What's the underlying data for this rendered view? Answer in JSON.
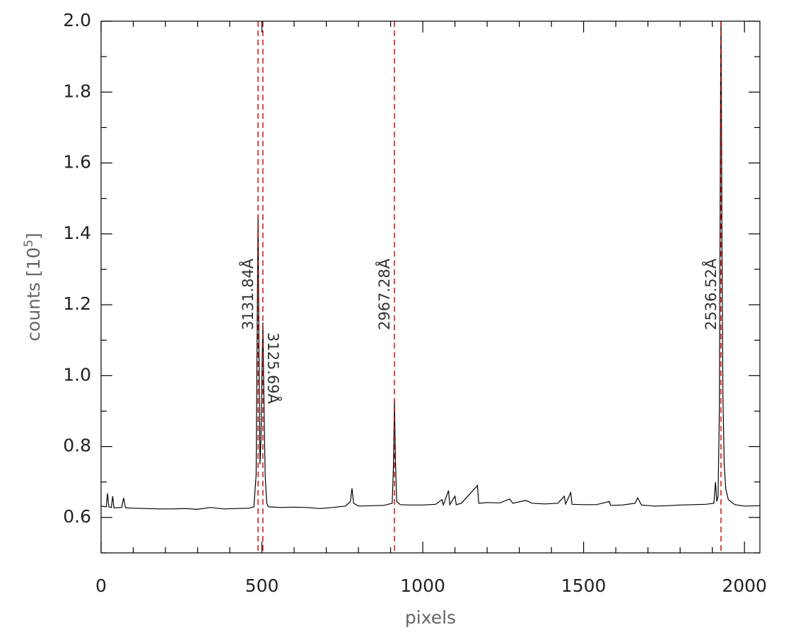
{
  "chart_data": {
    "type": "line",
    "xlabel": "pixels",
    "ylabel": [
      "counts [10",
      "5",
      "]"
    ],
    "xlim": [
      0,
      2048
    ],
    "ylim": [
      0.5,
      2.0
    ],
    "xticks": [
      0,
      500,
      1000,
      1500,
      2000
    ],
    "yticks": [
      0.6,
      0.8,
      {
        "value": 1,
        "label": "1.0"
      },
      1.2,
      1.4,
      1.6,
      1.8,
      {
        "value": 2,
        "label": "2.0"
      }
    ],
    "xminor_ticks": [
      100,
      200,
      300,
      400,
      600,
      700,
      800,
      900,
      1100,
      1200,
      1300,
      1400,
      1600,
      1700,
      1800,
      1900
    ],
    "yminor_ticks": [
      0.5,
      0.7,
      0.9,
      1.1,
      1.3,
      1.5,
      1.7,
      1.9
    ],
    "annotations": [
      {
        "x": 488,
        "label": "3131.84Å"
      },
      {
        "x": 503,
        "label": "3125.69Å"
      },
      {
        "x": 912,
        "label": "2967.28Å"
      },
      {
        "x": 1927,
        "label": "2536.52Å"
      }
    ],
    "annotation_color": "#cc0000",
    "series": [
      {
        "name": "spectrum",
        "color": "#000000",
        "x": [
          0,
          16,
          20,
          24,
          32,
          36,
          40,
          64,
          70,
          76,
          100,
          140,
          180,
          220,
          260,
          300,
          340,
          380,
          420,
          460,
          475,
          482,
          485,
          488,
          491,
          494,
          497,
          500,
          503,
          506,
          510,
          515,
          520,
          560,
          600,
          640,
          680,
          720,
          760,
          775,
          780,
          785,
          800,
          840,
          880,
          905,
          909,
          912,
          915,
          919,
          930,
          960,
          1000,
          1040,
          1060,
          1064,
          1080,
          1084,
          1100,
          1104,
          1120,
          1170,
          1174,
          1200,
          1240,
          1270,
          1280,
          1320,
          1340,
          1380,
          1420,
          1440,
          1444,
          1460,
          1464,
          1500,
          1540,
          1580,
          1584,
          1620,
          1660,
          1668,
          1680,
          1720,
          1760,
          1800,
          1840,
          1880,
          1905,
          1910,
          1914,
          1918,
          1922,
          1925,
          1927,
          1930,
          1933,
          1937,
          1942,
          1950,
          1970,
          2000,
          2048
        ],
        "values": [
          0.632,
          0.63,
          0.668,
          0.63,
          0.628,
          0.66,
          0.627,
          0.628,
          0.655,
          0.627,
          0.626,
          0.625,
          0.624,
          0.624,
          0.625,
          0.623,
          0.628,
          0.624,
          0.625,
          0.626,
          0.63,
          0.72,
          1.1,
          1.45,
          1.05,
          0.75,
          0.82,
          1.0,
          1.15,
          0.95,
          0.72,
          0.64,
          0.63,
          0.628,
          0.629,
          0.628,
          0.625,
          0.628,
          0.632,
          0.645,
          0.682,
          0.64,
          0.632,
          0.633,
          0.634,
          0.64,
          0.75,
          0.93,
          0.76,
          0.645,
          0.636,
          0.635,
          0.635,
          0.637,
          0.65,
          0.635,
          0.676,
          0.636,
          0.66,
          0.636,
          0.64,
          0.69,
          0.64,
          0.642,
          0.641,
          0.652,
          0.64,
          0.648,
          0.64,
          0.638,
          0.64,
          0.66,
          0.638,
          0.67,
          0.637,
          0.636,
          0.636,
          0.645,
          0.634,
          0.635,
          0.64,
          0.655,
          0.635,
          0.632,
          0.633,
          0.635,
          0.636,
          0.637,
          0.64,
          0.7,
          0.645,
          0.66,
          0.9,
          1.6,
          2.05,
          1.4,
          0.95,
          0.75,
          0.68,
          0.65,
          0.636,
          0.632,
          0.633
        ]
      }
    ]
  }
}
